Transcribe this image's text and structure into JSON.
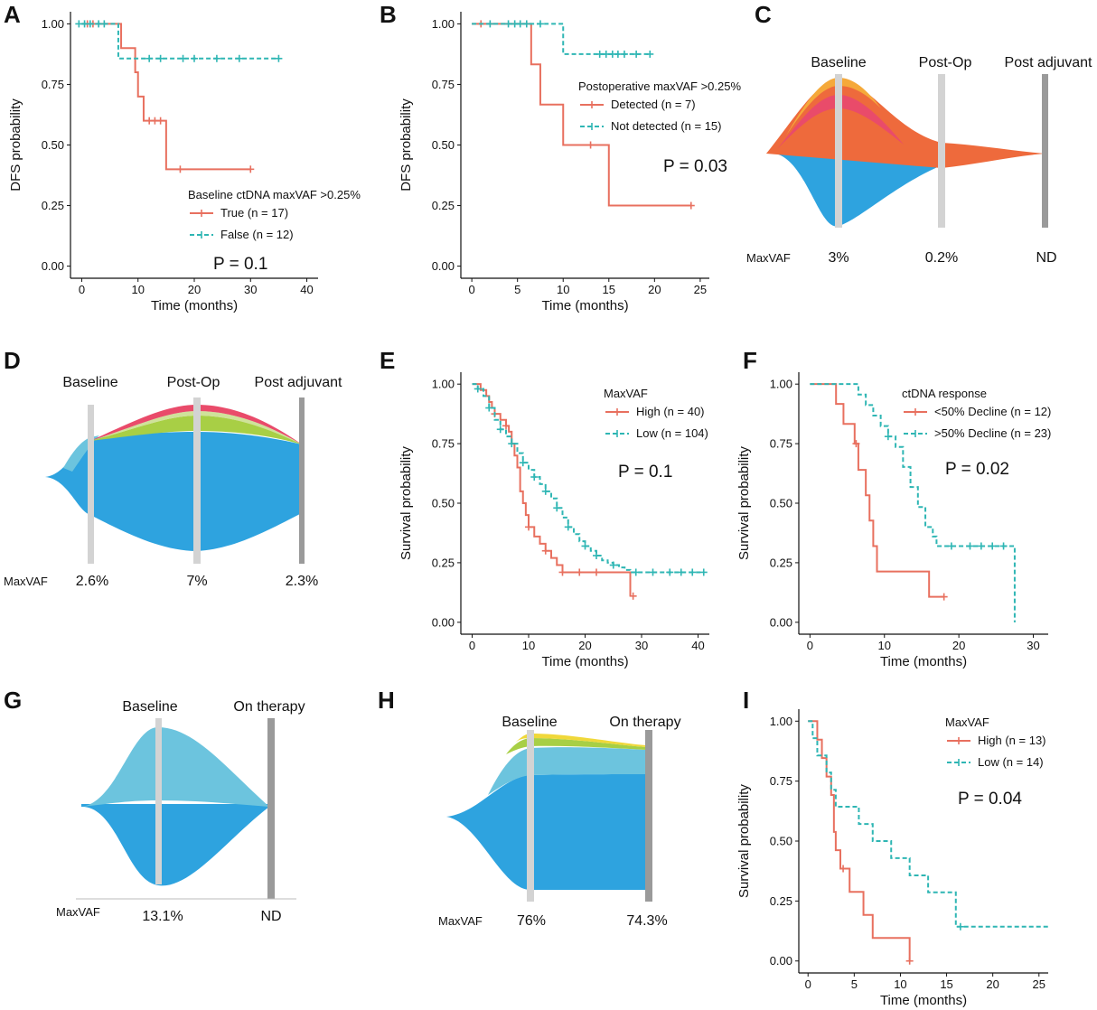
{
  "colors": {
    "red": "#e8705f",
    "teal": "#2fb6b4",
    "bar_light": "#d3d3d3",
    "bar_dark": "#9a9a9a",
    "blue": "#2ea3df",
    "light_blue": "#6cc4de",
    "green": "#a8cf45",
    "light_green": "#cfe29a",
    "pink": "#e94b6a",
    "orange": "#ee6a3c",
    "gold": "#f5a93a"
  },
  "chart_data": [
    {
      "id": "A",
      "type": "line",
      "label": "A",
      "xlabel": "Time (months)",
      "ylabel": "DFS probability",
      "xlim": [
        -2,
        42
      ],
      "ylim": [
        -0.05,
        1.05
      ],
      "xticks": [
        0,
        10,
        20,
        30,
        40
      ],
      "yticks": [
        0,
        0.25,
        0.5,
        0.75,
        1.0
      ],
      "ytick_labels": [
        "0.00",
        "0.25",
        "0.50",
        "0.75",
        "1.00"
      ],
      "legend_title": "Baseline ctDNA maxVAF >0.25%",
      "pvalue": "P = 0.1",
      "series": [
        {
          "name": "True",
          "n": "(n = 17)",
          "color": "red",
          "dashed": false,
          "steps": [
            [
              0,
              1.0
            ],
            [
              7,
              0.9
            ],
            [
              9.5,
              0.8
            ],
            [
              10,
              0.7
            ],
            [
              11,
              0.6
            ],
            [
              15,
              0.4
            ],
            [
              30,
              0.4
            ]
          ],
          "censor": [
            [
              1,
              1.0
            ],
            [
              2,
              1.0
            ],
            [
              12,
              0.6
            ],
            [
              13,
              0.6
            ],
            [
              14,
              0.6
            ],
            [
              17.5,
              0.4
            ],
            [
              30,
              0.4
            ]
          ]
        },
        {
          "name": "False",
          "n": "(n = 12)",
          "color": "teal",
          "dashed": true,
          "steps": [
            [
              0,
              1.0
            ],
            [
              6.5,
              0.857
            ],
            [
              35,
              0.857
            ]
          ],
          "censor": [
            [
              -0.5,
              1.0
            ],
            [
              0.5,
              1.0
            ],
            [
              1.5,
              1.0
            ],
            [
              3,
              1.0
            ],
            [
              4,
              1.0
            ],
            [
              12,
              0.857
            ],
            [
              14,
              0.857
            ],
            [
              18,
              0.857
            ],
            [
              20,
              0.857
            ],
            [
              24,
              0.857
            ],
            [
              28,
              0.857
            ],
            [
              35,
              0.857
            ]
          ]
        }
      ]
    },
    {
      "id": "B",
      "type": "line",
      "label": "B",
      "xlabel": "Time (months)",
      "ylabel": "DFS probability",
      "xlim": [
        -1.2,
        26
      ],
      "ylim": [
        -0.05,
        1.05
      ],
      "xticks": [
        0,
        5,
        10,
        15,
        20,
        25
      ],
      "yticks": [
        0,
        0.25,
        0.5,
        0.75,
        1.0
      ],
      "ytick_labels": [
        "0.00",
        "0.25",
        "0.50",
        "0.75",
        "1.00"
      ],
      "legend_title": "Postoperative maxVAF >0.25%",
      "pvalue": "P = 0.03",
      "series": [
        {
          "name": "Detected",
          "n": "(n = 7)",
          "color": "red",
          "dashed": false,
          "steps": [
            [
              0,
              1.0
            ],
            [
              6.5,
              0.833
            ],
            [
              7.5,
              0.667
            ],
            [
              10,
              0.5
            ],
            [
              15,
              0.25
            ],
            [
              24,
              0.25
            ]
          ],
          "censor": [
            [
              1,
              1.0
            ],
            [
              13,
              0.5
            ],
            [
              24,
              0.25
            ]
          ]
        },
        {
          "name": "Not detected",
          "n": "(n = 15)",
          "color": "teal",
          "dashed": true,
          "steps": [
            [
              0,
              1.0
            ],
            [
              10,
              0.875
            ],
            [
              19.5,
              0.875
            ]
          ],
          "censor": [
            [
              2,
              1.0
            ],
            [
              4,
              1.0
            ],
            [
              4.7,
              1.0
            ],
            [
              5.3,
              1.0
            ],
            [
              6,
              1.0
            ],
            [
              7.5,
              1.0
            ],
            [
              14,
              0.875
            ],
            [
              14.7,
              0.875
            ],
            [
              15.4,
              0.875
            ],
            [
              16,
              0.875
            ],
            [
              16.7,
              0.875
            ],
            [
              18,
              0.875
            ],
            [
              19.5,
              0.875
            ]
          ]
        }
      ]
    },
    {
      "id": "E",
      "type": "line",
      "label": "E",
      "xlabel": "Time (months)",
      "ylabel": "Survival probability",
      "xlim": [
        -2,
        42
      ],
      "ylim": [
        -0.05,
        1.05
      ],
      "xticks": [
        0,
        10,
        20,
        30,
        40
      ],
      "yticks": [
        0,
        0.25,
        0.5,
        0.75,
        1.0
      ],
      "ytick_labels": [
        "0.00",
        "0.25",
        "0.50",
        "0.75",
        "1.00"
      ],
      "legend_title": "MaxVAF",
      "pvalue": "P = 0.1",
      "series": [
        {
          "name": "High",
          "n": "(n = 40)",
          "color": "red",
          "dashed": false,
          "steps": [
            [
              0,
              1.0
            ],
            [
              1.5,
              0.975
            ],
            [
              2.5,
              0.95
            ],
            [
              3,
              0.925
            ],
            [
              3.5,
              0.9
            ],
            [
              4,
              0.875
            ],
            [
              5,
              0.85
            ],
            [
              6,
              0.825
            ],
            [
              6.5,
              0.8
            ],
            [
              7,
              0.75
            ],
            [
              7.5,
              0.7
            ],
            [
              8,
              0.65
            ],
            [
              8.5,
              0.55
            ],
            [
              9,
              0.5
            ],
            [
              9.5,
              0.45
            ],
            [
              10,
              0.4
            ],
            [
              11,
              0.36
            ],
            [
              12,
              0.33
            ],
            [
              13,
              0.3
            ],
            [
              14,
              0.27
            ],
            [
              15,
              0.24
            ],
            [
              16,
              0.21
            ],
            [
              28,
              0.11
            ]
          ],
          "censor": [
            [
              4,
              0.875
            ],
            [
              6,
              0.825
            ],
            [
              10,
              0.4
            ],
            [
              13,
              0.3
            ],
            [
              16,
              0.21
            ],
            [
              19,
              0.21
            ],
            [
              22,
              0.21
            ],
            [
              28.5,
              0.11
            ]
          ]
        },
        {
          "name": "Low",
          "n": "(n = 104)",
          "color": "teal",
          "dashed": true,
          "steps": [
            [
              0,
              1.0
            ],
            [
              1,
              0.98
            ],
            [
              2,
              0.95
            ],
            [
              3,
              0.9
            ],
            [
              4,
              0.85
            ],
            [
              5,
              0.81
            ],
            [
              6,
              0.78
            ],
            [
              7,
              0.75
            ],
            [
              8,
              0.71
            ],
            [
              9,
              0.67
            ],
            [
              10,
              0.64
            ],
            [
              11,
              0.61
            ],
            [
              12,
              0.58
            ],
            [
              13,
              0.55
            ],
            [
              14,
              0.52
            ],
            [
              15,
              0.48
            ],
            [
              16,
              0.44
            ],
            [
              17,
              0.4
            ],
            [
              18,
              0.37
            ],
            [
              19,
              0.34
            ],
            [
              20,
              0.32
            ],
            [
              21,
              0.3
            ],
            [
              22,
              0.28
            ],
            [
              23,
              0.26
            ],
            [
              24,
              0.25
            ],
            [
              25,
              0.24
            ],
            [
              26,
              0.23
            ],
            [
              27,
              0.22
            ],
            [
              28,
              0.21
            ],
            [
              41,
              0.21
            ]
          ],
          "censor": [
            [
              1,
              0.98
            ],
            [
              3,
              0.9
            ],
            [
              5,
              0.81
            ],
            [
              7,
              0.75
            ],
            [
              9,
              0.67
            ],
            [
              11,
              0.61
            ],
            [
              13,
              0.55
            ],
            [
              15,
              0.48
            ],
            [
              17,
              0.4
            ],
            [
              20,
              0.32
            ],
            [
              22,
              0.28
            ],
            [
              25,
              0.24
            ],
            [
              29,
              0.21
            ],
            [
              32,
              0.21
            ],
            [
              35,
              0.21
            ],
            [
              37,
              0.21
            ],
            [
              39,
              0.21
            ],
            [
              41,
              0.21
            ]
          ]
        }
      ]
    },
    {
      "id": "F",
      "type": "line",
      "label": "F",
      "xlabel": "Time (months)",
      "ylabel": "Survival probability",
      "xlim": [
        -1.5,
        32
      ],
      "ylim": [
        -0.05,
        1.05
      ],
      "xticks": [
        0,
        10,
        20,
        30
      ],
      "yticks": [
        0,
        0.25,
        0.5,
        0.75,
        1.0
      ],
      "ytick_labels": [
        "0.00",
        "0.25",
        "0.50",
        "0.75",
        "1.00"
      ],
      "legend_title": "ctDNA response",
      "pvalue": "P = 0.02",
      "series": [
        {
          "name": "<50% Decline",
          "n": "(n = 12)",
          "color": "red",
          "dashed": false,
          "steps": [
            [
              0,
              1.0
            ],
            [
              3.5,
              0.917
            ],
            [
              4.5,
              0.833
            ],
            [
              6,
              0.75
            ],
            [
              6.5,
              0.64
            ],
            [
              7.5,
              0.533
            ],
            [
              8,
              0.427
            ],
            [
              8.5,
              0.32
            ],
            [
              9,
              0.213
            ],
            [
              16,
              0.107
            ],
            [
              18,
              0.107
            ]
          ],
          "censor": [
            [
              6.2,
              0.75
            ],
            [
              18,
              0.107
            ]
          ]
        },
        {
          "name": ">50% Decline",
          "n": "(n = 23)",
          "color": "teal",
          "dashed": true,
          "steps": [
            [
              0,
              1.0
            ],
            [
              6.5,
              0.956
            ],
            [
              7.5,
              0.912
            ],
            [
              8.5,
              0.868
            ],
            [
              9.5,
              0.824
            ],
            [
              10.5,
              0.78
            ],
            [
              11.5,
              0.736
            ],
            [
              12.5,
              0.652
            ],
            [
              13.5,
              0.568
            ],
            [
              14.5,
              0.484
            ],
            [
              15.5,
              0.4
            ],
            [
              16.5,
              0.36
            ],
            [
              17,
              0.32
            ],
            [
              27.5,
              0.0
            ]
          ],
          "censor": [
            [
              10.5,
              0.78
            ],
            [
              19,
              0.32
            ],
            [
              21.5,
              0.32
            ],
            [
              23,
              0.32
            ],
            [
              24.5,
              0.32
            ],
            [
              26,
              0.32
            ]
          ]
        }
      ]
    },
    {
      "id": "I",
      "type": "line",
      "label": "I",
      "xlabel": "Time (months)",
      "ylabel": "Survival probability",
      "xlim": [
        -1,
        26
      ],
      "ylim": [
        -0.05,
        1.05
      ],
      "xticks": [
        0,
        5,
        10,
        15,
        20,
        25
      ],
      "yticks": [
        0,
        0.25,
        0.5,
        0.75,
        1.0
      ],
      "ytick_labels": [
        "0.00",
        "0.25",
        "0.50",
        "0.75",
        "1.00"
      ],
      "legend_title": "MaxVAF",
      "pvalue": "P = 0.04",
      "series": [
        {
          "name": "High",
          "n": "(n = 13)",
          "color": "red",
          "dashed": false,
          "steps": [
            [
              0,
              1.0
            ],
            [
              1,
              0.923
            ],
            [
              1.5,
              0.846
            ],
            [
              2,
              0.769
            ],
            [
              2.5,
              0.692
            ],
            [
              2.8,
              0.538
            ],
            [
              3,
              0.462
            ],
            [
              3.5,
              0.385
            ],
            [
              4,
              0.385
            ],
            [
              4.5,
              0.288
            ],
            [
              6,
              0.192
            ],
            [
              7,
              0.096
            ],
            [
              11,
              0.0
            ]
          ],
          "censor": [
            [
              3.8,
              0.385
            ],
            [
              11,
              0.0
            ]
          ]
        },
        {
          "name": "Low",
          "n": "(n = 14)",
          "color": "teal",
          "dashed": true,
          "steps": [
            [
              0,
              1.0
            ],
            [
              0.5,
              0.929
            ],
            [
              1,
              0.857
            ],
            [
              2,
              0.786
            ],
            [
              2.5,
              0.714
            ],
            [
              3,
              0.643
            ],
            [
              5.5,
              0.571
            ],
            [
              7,
              0.5
            ],
            [
              9,
              0.429
            ],
            [
              11,
              0.357
            ],
            [
              13,
              0.286
            ],
            [
              16,
              0.143
            ],
            [
              26,
              0.143
            ]
          ],
          "censor": [
            [
              16.5,
              0.143
            ]
          ]
        }
      ]
    }
  ],
  "fishplots": [
    {
      "id": "C",
      "label": "C",
      "stage_labels": [
        "Baseline",
        "Post-Op",
        "Post adjuvant"
      ],
      "maxvaf_label": "MaxVAF",
      "maxvaf_values": [
        "3%",
        "0.2%",
        "ND"
      ]
    },
    {
      "id": "D",
      "label": "D",
      "stage_labels": [
        "Baseline",
        "Post-Op",
        "Post adjuvant"
      ],
      "maxvaf_label": "MaxVAF",
      "maxvaf_values": [
        "2.6%",
        "7%",
        "2.3%"
      ]
    },
    {
      "id": "G",
      "label": "G",
      "stage_labels": [
        "Baseline",
        "On therapy"
      ],
      "maxvaf_label": "MaxVAF",
      "maxvaf_values": [
        "13.1%",
        "ND"
      ]
    },
    {
      "id": "H",
      "label": "H",
      "stage_labels": [
        "Baseline",
        "On therapy"
      ],
      "maxvaf_label": "MaxVAF",
      "maxvaf_values": [
        "76%",
        "74.3%"
      ]
    }
  ]
}
